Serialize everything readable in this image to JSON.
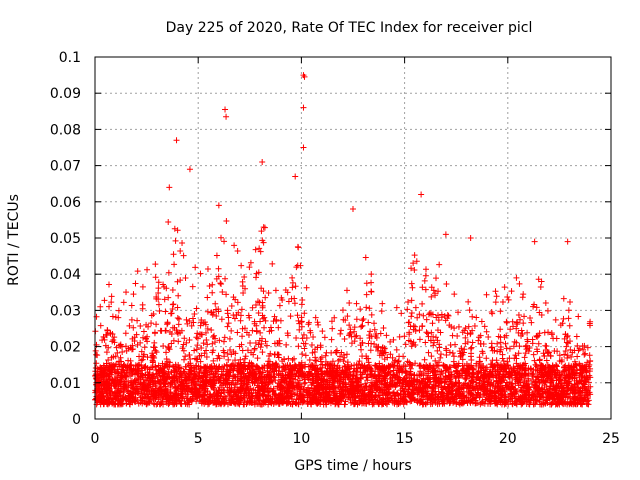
{
  "chart_data": {
    "type": "scatter",
    "title": "Day 225 of 2020, Rate Of TEC Index for receiver picl",
    "xlabel": "GPS time / hours",
    "ylabel": "ROTI / TECUs",
    "xlim": [
      0,
      25
    ],
    "ylim": [
      0,
      0.1
    ],
    "grid": true,
    "marker": "+",
    "series_color": "#ff0000",
    "x_ticks": [
      0,
      5,
      10,
      15,
      20,
      25
    ],
    "x_tick_labels": [
      "0",
      "5",
      "10",
      "15",
      "20",
      "25"
    ],
    "y_ticks": [
      0,
      0.01,
      0.02,
      0.03,
      0.04,
      0.05,
      0.06,
      0.07,
      0.08,
      0.09,
      0.1
    ],
    "y_tick_labels": [
      "0",
      "0.01",
      "0.02",
      "0.03",
      "0.04",
      "0.05",
      "0.06",
      "0.07",
      "0.08",
      "0.09",
      "0.1"
    ],
    "data_time_range_hours": [
      0,
      24
    ],
    "notable_points": [
      {
        "x": 3.95,
        "y": 0.077
      },
      {
        "x": 4.6,
        "y": 0.069
      },
      {
        "x": 6.3,
        "y": 0.0855
      },
      {
        "x": 6.35,
        "y": 0.0835
      },
      {
        "x": 8.1,
        "y": 0.071
      },
      {
        "x": 10.1,
        "y": 0.095
      },
      {
        "x": 10.15,
        "y": 0.0945
      },
      {
        "x": 10.1,
        "y": 0.086
      },
      {
        "x": 10.1,
        "y": 0.075
      },
      {
        "x": 9.7,
        "y": 0.067
      },
      {
        "x": 12.5,
        "y": 0.058
      },
      {
        "x": 15.8,
        "y": 0.062
      },
      {
        "x": 6.0,
        "y": 0.059
      },
      {
        "x": 3.6,
        "y": 0.064
      },
      {
        "x": 17.0,
        "y": 0.051
      },
      {
        "x": 18.2,
        "y": 0.05
      },
      {
        "x": 22.9,
        "y": 0.049
      },
      {
        "x": 21.3,
        "y": 0.049
      }
    ],
    "envelope": [
      {
        "x": 0.0,
        "y": 0.032
      },
      {
        "x": 0.5,
        "y": 0.033
      },
      {
        "x": 0.8,
        "y": 0.048
      },
      {
        "x": 1.2,
        "y": 0.03
      },
      {
        "x": 1.8,
        "y": 0.04
      },
      {
        "x": 2.3,
        "y": 0.044
      },
      {
        "x": 2.8,
        "y": 0.046
      },
      {
        "x": 3.3,
        "y": 0.052
      },
      {
        "x": 3.7,
        "y": 0.058
      },
      {
        "x": 4.2,
        "y": 0.052
      },
      {
        "x": 4.7,
        "y": 0.048
      },
      {
        "x": 5.2,
        "y": 0.04
      },
      {
        "x": 5.7,
        "y": 0.044
      },
      {
        "x": 6.2,
        "y": 0.058
      },
      {
        "x": 6.7,
        "y": 0.052
      },
      {
        "x": 7.2,
        "y": 0.04
      },
      {
        "x": 7.7,
        "y": 0.046
      },
      {
        "x": 8.2,
        "y": 0.055
      },
      {
        "x": 8.7,
        "y": 0.04
      },
      {
        "x": 9.2,
        "y": 0.035
      },
      {
        "x": 9.7,
        "y": 0.052
      },
      {
        "x": 10.2,
        "y": 0.045
      },
      {
        "x": 10.7,
        "y": 0.03
      },
      {
        "x": 11.2,
        "y": 0.028
      },
      {
        "x": 11.7,
        "y": 0.03
      },
      {
        "x": 12.2,
        "y": 0.042
      },
      {
        "x": 12.7,
        "y": 0.04
      },
      {
        "x": 13.2,
        "y": 0.046
      },
      {
        "x": 13.7,
        "y": 0.036
      },
      {
        "x": 14.2,
        "y": 0.03
      },
      {
        "x": 14.7,
        "y": 0.033
      },
      {
        "x": 15.2,
        "y": 0.04
      },
      {
        "x": 15.7,
        "y": 0.05
      },
      {
        "x": 16.2,
        "y": 0.044
      },
      {
        "x": 16.7,
        "y": 0.046
      },
      {
        "x": 17.2,
        "y": 0.04
      },
      {
        "x": 17.7,
        "y": 0.032
      },
      {
        "x": 18.2,
        "y": 0.042
      },
      {
        "x": 18.7,
        "y": 0.04
      },
      {
        "x": 19.2,
        "y": 0.034
      },
      {
        "x": 19.7,
        "y": 0.038
      },
      {
        "x": 20.2,
        "y": 0.042
      },
      {
        "x": 20.7,
        "y": 0.036
      },
      {
        "x": 21.2,
        "y": 0.046
      },
      {
        "x": 21.7,
        "y": 0.042
      },
      {
        "x": 22.2,
        "y": 0.034
      },
      {
        "x": 22.7,
        "y": 0.04
      },
      {
        "x": 23.2,
        "y": 0.028
      },
      {
        "x": 23.7,
        "y": 0.03
      },
      {
        "x": 24.0,
        "y": 0.03
      }
    ],
    "baseline_band": [
      0.004,
      0.015
    ]
  }
}
